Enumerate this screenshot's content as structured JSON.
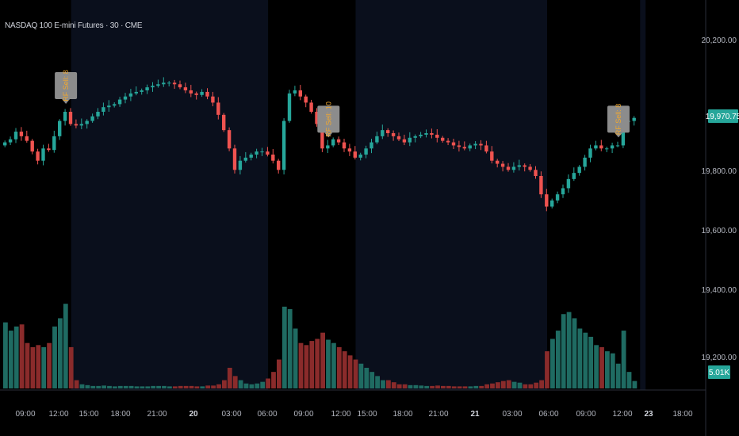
{
  "title": "NASDAQ 100 E-mini Futures · 30 · CME",
  "colors": {
    "background": "#000000",
    "session_band": "#0a0f1c",
    "up": "#26a69a",
    "down": "#ef5350",
    "vol_up": "#1f6b62",
    "vol_down": "#8a2b2b",
    "price_badge": "#26a69a",
    "flag_bg": "#8c8c8c"
  },
  "price_axis": {
    "ylim": [
      19300,
      20250
    ],
    "ticks": [
      "20,200.00",
      "19,800.00",
      "19,600.00",
      "19,400.00",
      "19,200.00"
    ],
    "tick_values": [
      20200,
      19800,
      19600,
      19400,
      19200
    ]
  },
  "time_axis": {
    "ticks": [
      {
        "label": "09:00",
        "bold": false
      },
      {
        "label": "12:00",
        "bold": false
      },
      {
        "label": "15:00",
        "bold": false
      },
      {
        "label": "18:00",
        "bold": false
      },
      {
        "label": "21:00",
        "bold": false
      },
      {
        "label": "20",
        "bold": true
      },
      {
        "label": "03:00",
        "bold": false
      },
      {
        "label": "06:00",
        "bold": false
      },
      {
        "label": "09:00",
        "bold": false
      },
      {
        "label": "12:00",
        "bold": false
      },
      {
        "label": "15:00",
        "bold": false
      },
      {
        "label": "18:00",
        "bold": false
      },
      {
        "label": "21:00",
        "bold": false
      },
      {
        "label": "21",
        "bold": true
      },
      {
        "label": "03:00",
        "bold": false
      },
      {
        "label": "06:00",
        "bold": false
      },
      {
        "label": "09:00",
        "bold": false
      },
      {
        "label": "12:00",
        "bold": false
      },
      {
        "label": "23",
        "bold": true
      },
      {
        "label": "18:00",
        "bold": false
      }
    ]
  },
  "last_price": {
    "value": 19970.75,
    "label": "19,970.75"
  },
  "volume_badge": {
    "label": "5.01K"
  },
  "chart_data": {
    "type": "candlestick",
    "title": "NASDAQ 100 E-mini Futures · 30 · CME",
    "series": [
      {
        "name": "price",
        "closes": [
          19890,
          19900,
          19925,
          19910,
          19895,
          19860,
          19830,
          19870,
          19865,
          19910,
          19960,
          19990,
          19950,
          19945,
          19950,
          19960,
          19975,
          19990,
          20005,
          20010,
          20015,
          20030,
          20040,
          20050,
          20055,
          20060,
          20070,
          20075,
          20080,
          20085,
          20085,
          20080,
          20070,
          20060,
          20050,
          20045,
          20055,
          20040,
          20020,
          19980,
          19930,
          19870,
          19800,
          19830,
          19840,
          19850,
          19860,
          19860,
          19850,
          19830,
          19800,
          19960,
          20050,
          20060,
          20040,
          20020,
          19990,
          19950,
          19870,
          19880,
          19900,
          19890,
          19870,
          19860,
          19840,
          19850,
          19870,
          19890,
          19910,
          19930,
          19920,
          19910,
          19900,
          19890,
          19905,
          19910,
          19915,
          19920,
          19915,
          19905,
          19895,
          19890,
          19880,
          19875,
          19870,
          19880,
          19885,
          19880,
          19860,
          19830,
          19820,
          19810,
          19800,
          19810,
          19815,
          19810,
          19800,
          19780,
          19720,
          19680,
          19700,
          19720,
          19740,
          19770,
          19790,
          19810,
          19840,
          19870,
          19880,
          19870,
          19870,
          19880,
          19880,
          19960,
          19960,
          19970
        ]
      }
    ],
    "volume": [
      160,
      140,
      150,
      155,
      110,
      100,
      105,
      100,
      110,
      150,
      170,
      205,
      100,
      20,
      10,
      8,
      6,
      6,
      7,
      6,
      5,
      6,
      6,
      6,
      5,
      5,
      5,
      6,
      6,
      6,
      5,
      5,
      6,
      6,
      6,
      5,
      5,
      7,
      7,
      10,
      20,
      50,
      30,
      20,
      12,
      10,
      12,
      16,
      24,
      40,
      70,
      198,
      192,
      145,
      110,
      105,
      115,
      120,
      135,
      118,
      110,
      100,
      90,
      80,
      70,
      60,
      50,
      40,
      30,
      20,
      20,
      15,
      10,
      10,
      8,
      8,
      7,
      6,
      6,
      7,
      6,
      6,
      5,
      5,
      5,
      5,
      6,
      6,
      10,
      12,
      15,
      18,
      20,
      16,
      14,
      10,
      10,
      14,
      20,
      90,
      120,
      140,
      180,
      185,
      170,
      145,
      135,
      125,
      105,
      100,
      90,
      85,
      60,
      140,
      40,
      18
    ],
    "ylim": [
      19300,
      20250
    ],
    "flags": [
      {
        "label": "RF Sell: 8",
        "x_index": 11
      },
      {
        "label": "RF Sell: 10",
        "x_index": 59
      },
      {
        "label": "RF Sell: 8",
        "x_index": 112
      }
    ],
    "grid": false
  }
}
